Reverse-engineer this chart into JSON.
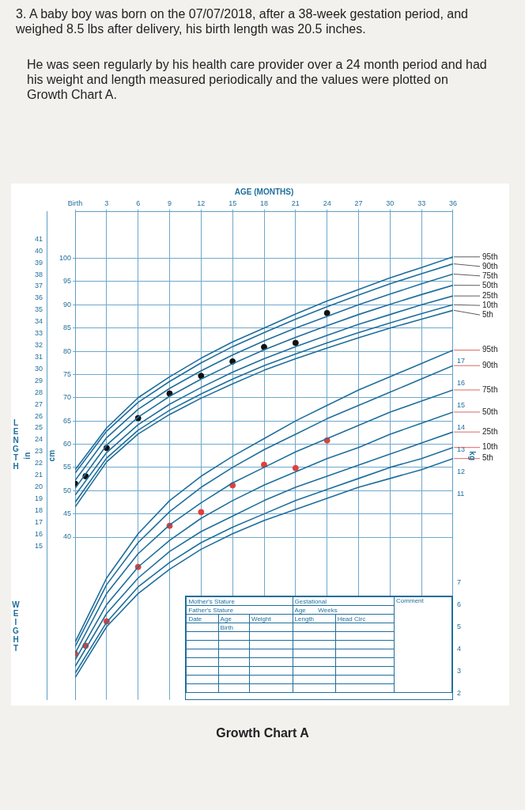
{
  "chart_data": {
    "type": "line",
    "title": "3. A baby boy was born on the 07/07/2018, after a 38-week gestation period, and weighed 8.5 lbs after delivery, his birth length was 20.5 inches.",
    "subtitle": "He was seen regularly by his health care provider over a 24 month period and had his weight and length measured periodically and the values were plotted on Growth Chart A.",
    "xlabel": "AGE (MONTHS)",
    "ylabel": "cm",
    "y3label": "in",
    "y2label": "kg",
    "annotations": [
      "LENGTH",
      "WEIGHT",
      "Growth Chart A",
      "Mother's Stature",
      "Father's Stature",
      "Gestational",
      "Age",
      "Weeks",
      "Date",
      "Age",
      "Weight",
      "Length",
      "Head Circ",
      "Birth",
      "Comment"
    ],
    "x": [
      0,
      3,
      6,
      9,
      12,
      15,
      18,
      21,
      24,
      27,
      30,
      33,
      36
    ],
    "xlim": [
      0,
      36
    ],
    "xticks": [
      {
        "value": 0,
        "label": "Birth"
      },
      3,
      6,
      9,
      12,
      15,
      18,
      21,
      24,
      27,
      30,
      33,
      36
    ],
    "ylim": [
      5,
      110
    ],
    "yticks": [
      40,
      45,
      50,
      55,
      60,
      65,
      70,
      75,
      80,
      85,
      90,
      95,
      100
    ],
    "y3lim": [
      1.97,
      43.31
    ],
    "y3ticks": [
      15,
      16,
      17,
      18,
      19,
      20,
      21,
      22,
      23,
      24,
      25,
      26,
      27,
      28,
      29,
      30,
      31,
      32,
      33,
      34,
      35,
      36,
      37,
      38,
      39,
      40,
      41
    ],
    "y2lim": [
      1.7,
      23.75
    ],
    "y2ticks": [
      2,
      3,
      4,
      5,
      6,
      7,
      11,
      12,
      13,
      14,
      15,
      16,
      17
    ],
    "grid": true,
    "legend": false,
    "line_style": "solid",
    "series": [
      {
        "name": "95th",
        "color": "#1f6e9c",
        "axis": "y",
        "marker": "none",
        "values": [
          54.5,
          63.5,
          70.0,
          74.5,
          78.5,
          82.0,
          85.0,
          88.0,
          90.8,
          93.3,
          95.8,
          98.0,
          100.3
        ]
      },
      {
        "name": "90th",
        "color": "#1f6e9c",
        "axis": "y",
        "marker": "none",
        "values": [
          53.8,
          62.8,
          69.0,
          73.5,
          77.5,
          81.0,
          84.0,
          86.9,
          89.6,
          92.1,
          94.5,
          96.7,
          98.8
        ]
      },
      {
        "name": "75th",
        "color": "#1f6e9c",
        "axis": "y",
        "marker": "none",
        "values": [
          52.2,
          61.4,
          67.5,
          72.0,
          75.8,
          79.2,
          82.2,
          85.0,
          87.5,
          90.0,
          92.3,
          94.5,
          96.6
        ]
      },
      {
        "name": "50th",
        "color": "#1f6e9c",
        "axis": "y",
        "marker": "none",
        "values": [
          50.5,
          59.8,
          65.8,
          70.3,
          74.0,
          77.3,
          80.3,
          83.0,
          85.5,
          87.9,
          90.1,
          92.2,
          94.2
        ]
      },
      {
        "name": "25th",
        "color": "#1f6e9c",
        "axis": "y",
        "marker": "none",
        "values": [
          49.0,
          58.2,
          64.2,
          68.6,
          72.2,
          75.5,
          78.4,
          81.0,
          83.4,
          85.8,
          87.9,
          90.0,
          91.9
        ]
      },
      {
        "name": "10th",
        "color": "#1f6e9c",
        "axis": "y",
        "marker": "none",
        "values": [
          47.5,
          57.0,
          63.0,
          67.3,
          70.8,
          74.0,
          76.9,
          79.4,
          81.8,
          84.0,
          86.1,
          88.1,
          90.0
        ]
      },
      {
        "name": "5th",
        "color": "#1f6e9c",
        "axis": "y",
        "marker": "none",
        "values": [
          46.5,
          56.2,
          62.2,
          66.4,
          69.9,
          73.0,
          75.9,
          78.4,
          80.7,
          82.9,
          85.0,
          86.9,
          88.8
        ]
      },
      {
        "name": "95th",
        "color": "#1f6e9c",
        "axis": "y2",
        "marker": "none",
        "values": [
          4.3,
          7.2,
          9.2,
          10.7,
          11.8,
          12.7,
          13.5,
          14.3,
          15.0,
          15.7,
          16.3,
          16.9,
          17.5
        ]
      },
      {
        "name": "90th",
        "color": "#1f6e9c",
        "axis": "y2",
        "marker": "none",
        "values": [
          4.1,
          6.9,
          8.8,
          10.2,
          11.3,
          12.2,
          13.0,
          13.7,
          14.4,
          15.0,
          15.6,
          16.2,
          16.8
        ]
      },
      {
        "name": "75th",
        "color": "#1f6e9c",
        "axis": "y2",
        "marker": "none",
        "values": [
          3.8,
          6.5,
          8.3,
          9.6,
          10.6,
          11.5,
          12.2,
          12.9,
          13.5,
          14.1,
          14.7,
          15.2,
          15.7
        ]
      },
      {
        "name": "50th",
        "color": "#1f6e9c",
        "axis": "y2",
        "marker": "none",
        "values": [
          3.5,
          6.0,
          7.7,
          8.9,
          9.9,
          10.7,
          11.4,
          12.0,
          12.6,
          13.1,
          13.7,
          14.2,
          14.7
        ]
      },
      {
        "name": "25th",
        "color": "#1f6e9c",
        "axis": "y2",
        "marker": "none",
        "values": [
          3.2,
          5.6,
          7.2,
          8.4,
          9.3,
          10.0,
          10.7,
          11.3,
          11.8,
          12.3,
          12.8,
          13.3,
          13.8
        ]
      },
      {
        "name": "10th",
        "color": "#1f6e9c",
        "axis": "y2",
        "marker": "none",
        "values": [
          2.9,
          5.2,
          6.8,
          7.9,
          8.8,
          9.5,
          10.1,
          10.7,
          11.2,
          11.7,
          12.2,
          12.6,
          13.1
        ]
      },
      {
        "name": "5th",
        "color": "#1f6e9c",
        "axis": "y2",
        "marker": "none",
        "values": [
          2.7,
          5.0,
          6.5,
          7.6,
          8.5,
          9.2,
          9.8,
          10.3,
          10.8,
          11.3,
          11.7,
          12.1,
          12.6
        ]
      },
      {
        "type": "scatter",
        "color": "#111111",
        "axis": "y",
        "marker": "circle",
        "x": [
          0,
          1,
          3,
          6,
          9,
          12,
          15,
          18,
          21,
          24
        ],
        "values": [
          51.5,
          53.1,
          59.2,
          65.6,
          70.9,
          74.7,
          77.8,
          80.9,
          81.8,
          88.2
        ]
      },
      {
        "type": "scatter",
        "color": "#e0403a",
        "axis": "y2",
        "marker": "circle",
        "x": [
          0,
          1,
          3,
          6,
          9,
          12,
          15,
          18,
          21,
          24
        ],
        "values": [
          3.78,
          4.14,
          5.24,
          7.7,
          9.56,
          10.18,
          11.39,
          12.32,
          12.17,
          13.42
        ]
      }
    ]
  }
}
